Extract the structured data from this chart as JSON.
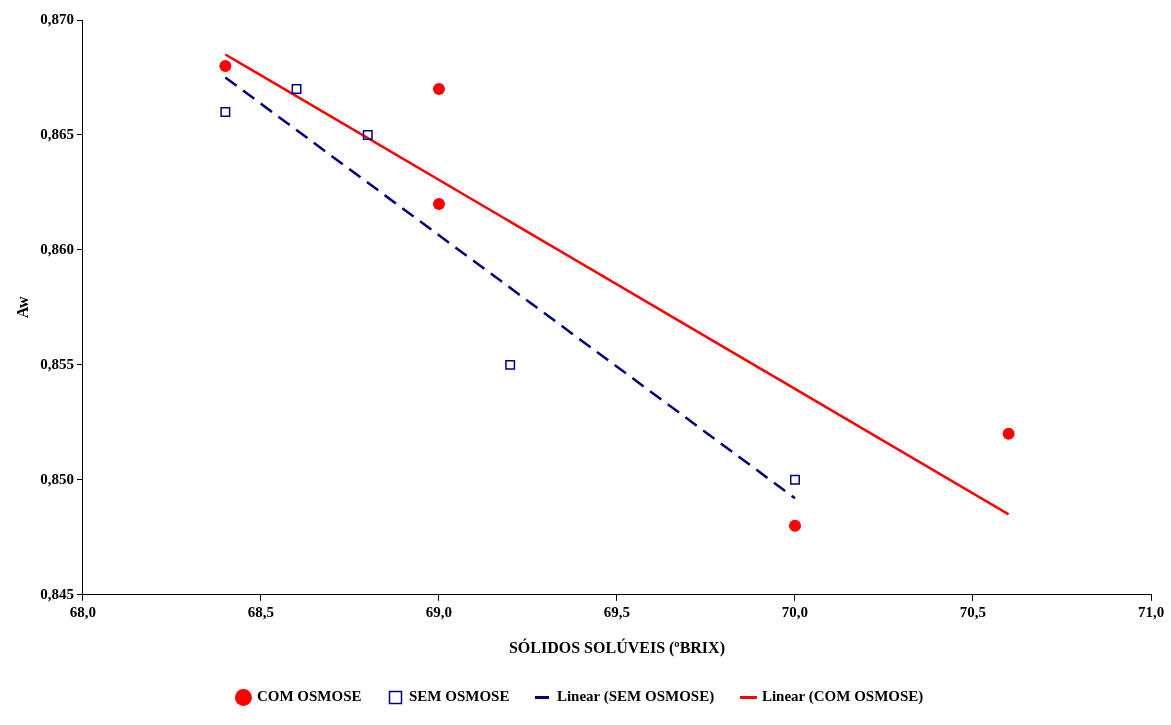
{
  "chart_data": {
    "type": "scatter",
    "xlabel": "SÓLIDOS SOLÚVEIS (ºBRIX)",
    "ylabel": "Aw",
    "xlim": [
      68,
      71
    ],
    "xticks": [
      {
        "value": 68,
        "label": "68,0"
      },
      {
        "value": 68.5,
        "label": "68,5"
      },
      {
        "value": 69,
        "label": "69,0"
      },
      {
        "value": 69.5,
        "label": "69,5"
      },
      {
        "value": 70,
        "label": "70,0"
      },
      {
        "value": 70.5,
        "label": "70,5"
      },
      {
        "value": 71,
        "label": "71,0"
      }
    ],
    "ylim": [
      0.845,
      0.87
    ],
    "yticks": [
      {
        "value": 0.845,
        "label": "0,845"
      },
      {
        "value": 0.85,
        "label": "0,850"
      },
      {
        "value": 0.855,
        "label": "0,855"
      },
      {
        "value": 0.86,
        "label": "0,860"
      },
      {
        "value": 0.865,
        "label": "0,865"
      },
      {
        "value": 0.87,
        "label": "0,870"
      }
    ],
    "grid": false,
    "legend": "bottom",
    "series": [
      {
        "name": "COM OSMOSE",
        "type": "scatter",
        "marker": "circle",
        "color": "#ff0000",
        "x": [
          68.4,
          69.0,
          69.0,
          70.0,
          70.6
        ],
        "values": [
          0.868,
          0.867,
          0.862,
          0.848,
          0.852
        ]
      },
      {
        "name": "SEM OSMOSE",
        "type": "scatter",
        "marker": "square",
        "color": "#000080",
        "x": [
          68.4,
          68.6,
          68.8,
          69.2,
          70.0
        ],
        "values": [
          0.866,
          0.867,
          0.865,
          0.855,
          0.85
        ]
      },
      {
        "name": "Linear (SEM OSMOSE)",
        "type": "line",
        "line_style": "dashed",
        "color": "#000080",
        "x": [
          68.4,
          70.0
        ],
        "values": [
          0.8675,
          0.8492
        ]
      },
      {
        "name": "Linear (COM OSMOSE)",
        "type": "line",
        "line_style": "solid",
        "color": "#ff0000",
        "x": [
          68.4,
          70.6
        ],
        "values": [
          0.8685,
          0.8485
        ]
      }
    ]
  }
}
